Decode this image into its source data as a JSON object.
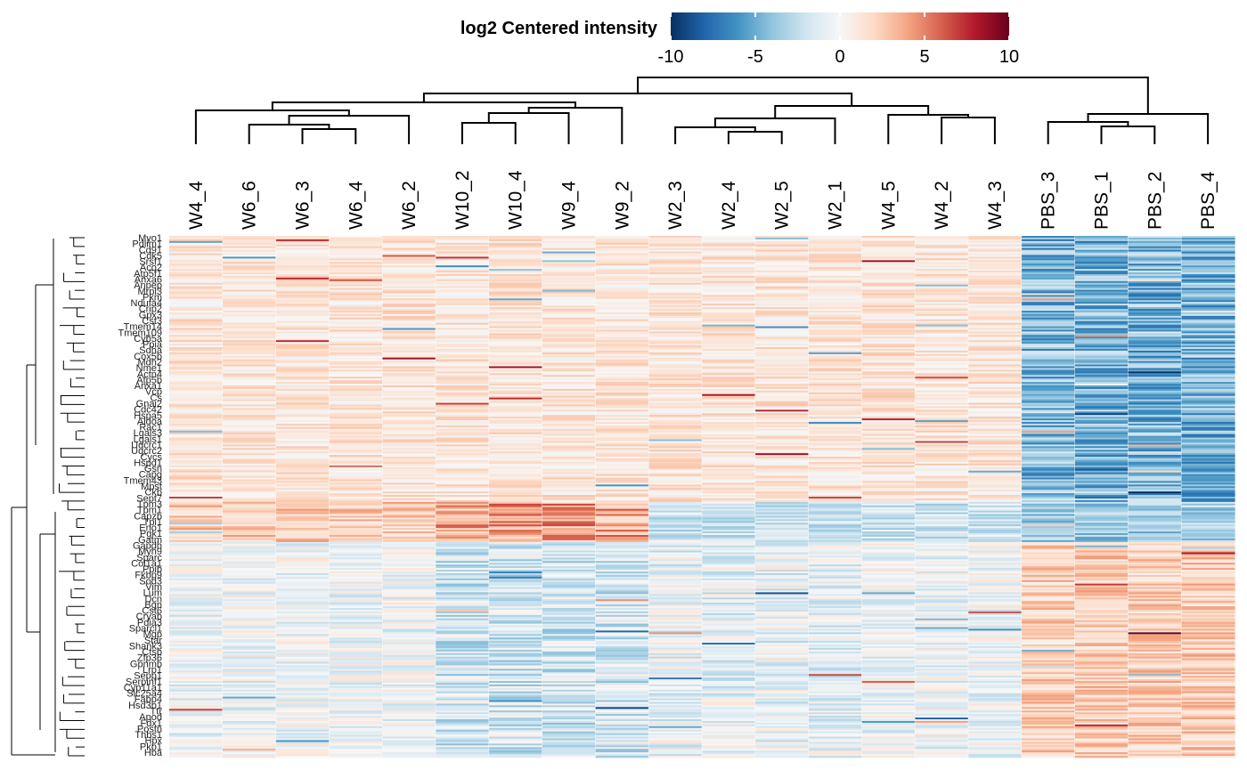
{
  "chart_data": {
    "type": "heatmap",
    "legend": {
      "title": "log2 Centered intensity",
      "min": -10,
      "max": 10,
      "ticks": [
        -10,
        -5,
        0,
        5,
        10
      ],
      "palette": [
        "#053061",
        "#2166ac",
        "#4393c3",
        "#92c5de",
        "#d1e5f0",
        "#f7f7f7",
        "#fddbc7",
        "#f4a582",
        "#d6604d",
        "#b2182b",
        "#67001f"
      ]
    },
    "columns": [
      "W4_4",
      "W6_6",
      "W6_3",
      "W6_4",
      "W6_2",
      "W10_2",
      "W10_4",
      "W9_4",
      "W9_2",
      "W2_3",
      "W2_4",
      "W2_5",
      "W2_1",
      "W4_5",
      "W4_2",
      "W4_3",
      "PBS_3",
      "PBS_1",
      "PBS_2",
      "PBS_4"
    ],
    "row_labels": [
      "Myo1",
      "Pdlim1",
      "Cd91",
      "Cdk5",
      "Srsf1",
      "Aco2",
      "Atp5f1",
      "Anxa6",
      "Anpep",
      "Mrpl3",
      "Pkm",
      "Ndufa4",
      "Crip2",
      "Gpx3",
      "Cst3",
      "Tmem14",
      "Tmem109",
      "Cyb5a",
      "Ppia",
      "Sdha",
      "Cox5b",
      "Mdh2",
      "Nme1",
      "Actn4",
      "Atp5b",
      "Anxa1",
      "Vcp",
      "Cs",
      "Gnai2",
      "Cdc42",
      "Hspa5",
      "Aldoa",
      "Rac1",
      "Lgals3",
      "Lgals1",
      "Uqcrc1",
      "Uqcrc2",
      "Cycs",
      "Hspd1",
      "Gsn",
      "Capg",
      "Tmem43",
      "Mpst",
      "Ckb",
      "Sept7",
      "Tpm3",
      "Tpm1",
      "Capzb",
      "Tpi1",
      "Eno1",
      "Pgk1",
      "Gatm",
      "Gapdh",
      "Myh9",
      "Sparc",
      "Col1a1",
      "Ppib",
      "Fkbp9",
      "Sod3",
      "Vim",
      "Lum",
      "Dcn",
      "Bgn",
      "Cst6",
      "Cryab",
      "Pdia3",
      "Sparcl1",
      "Mgp",
      "Star",
      "Shank3",
      "Ctsb",
      "Zfp36",
      "Gpnmb",
      "Lrp1",
      "Sepp1",
      "Serpinf1",
      "Cyp11a1",
      "Slc25a4",
      "Fabp4",
      "Hsd3b1",
      "Ttr",
      "Apod",
      "Fdx1",
      "Postn",
      "Thbs1",
      "Hpx",
      "Pkp1",
      "Hba"
    ],
    "dendrogram": {
      "column_clusters": [
        [
          "W4_4"
        ],
        [
          "W6_6",
          "W6_3",
          "W6_4",
          "W6_2"
        ],
        [
          "W10_2",
          "W10_4",
          "W9_4",
          "W9_2"
        ],
        [
          "W2_3",
          "W2_4",
          "W2_5",
          "W2_1"
        ],
        [
          "W4_5",
          "W4_2",
          "W4_3"
        ],
        [
          "PBS_3",
          "PBS_1",
          "PBS_2",
          "PBS_4"
        ]
      ],
      "row_clusters": 2
    }
  }
}
